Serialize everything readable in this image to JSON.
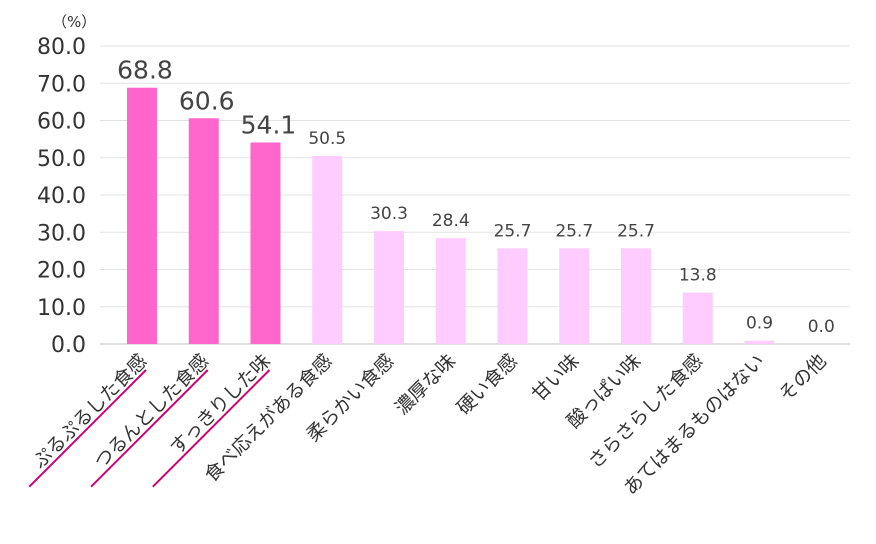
{
  "chart_data": {
    "type": "bar",
    "unit_label": "（%）",
    "categories": [
      "ぷるぷるした食感",
      "つるんとした食感",
      "すっきりした味",
      "食べ応えがある食感",
      "柔らかい食感",
      "濃厚な味",
      "硬い食感",
      "甘い味",
      "酸っぱい味",
      "さらさらした食感",
      "あてはまるものはない",
      "その他"
    ],
    "values": [
      68.8,
      60.6,
      54.1,
      50.5,
      30.3,
      28.4,
      25.7,
      25.7,
      25.7,
      13.8,
      0.9,
      0.0
    ],
    "value_labels": [
      "68.8",
      "60.6",
      "54.1",
      "50.5",
      "30.3",
      "28.4",
      "25.7",
      "25.7",
      "25.7",
      "13.8",
      "0.9",
      "0.0"
    ],
    "highlighted_count": 3,
    "ylim": [
      0,
      80
    ],
    "yticks": [
      "0.0",
      "10.0",
      "20.0",
      "30.0",
      "40.0",
      "50.0",
      "60.0",
      "70.0",
      "80.0"
    ],
    "grid": true,
    "colors": {
      "highlight": "#ff66cc",
      "normal": "#ffccff",
      "underline": "#cc0077"
    }
  }
}
